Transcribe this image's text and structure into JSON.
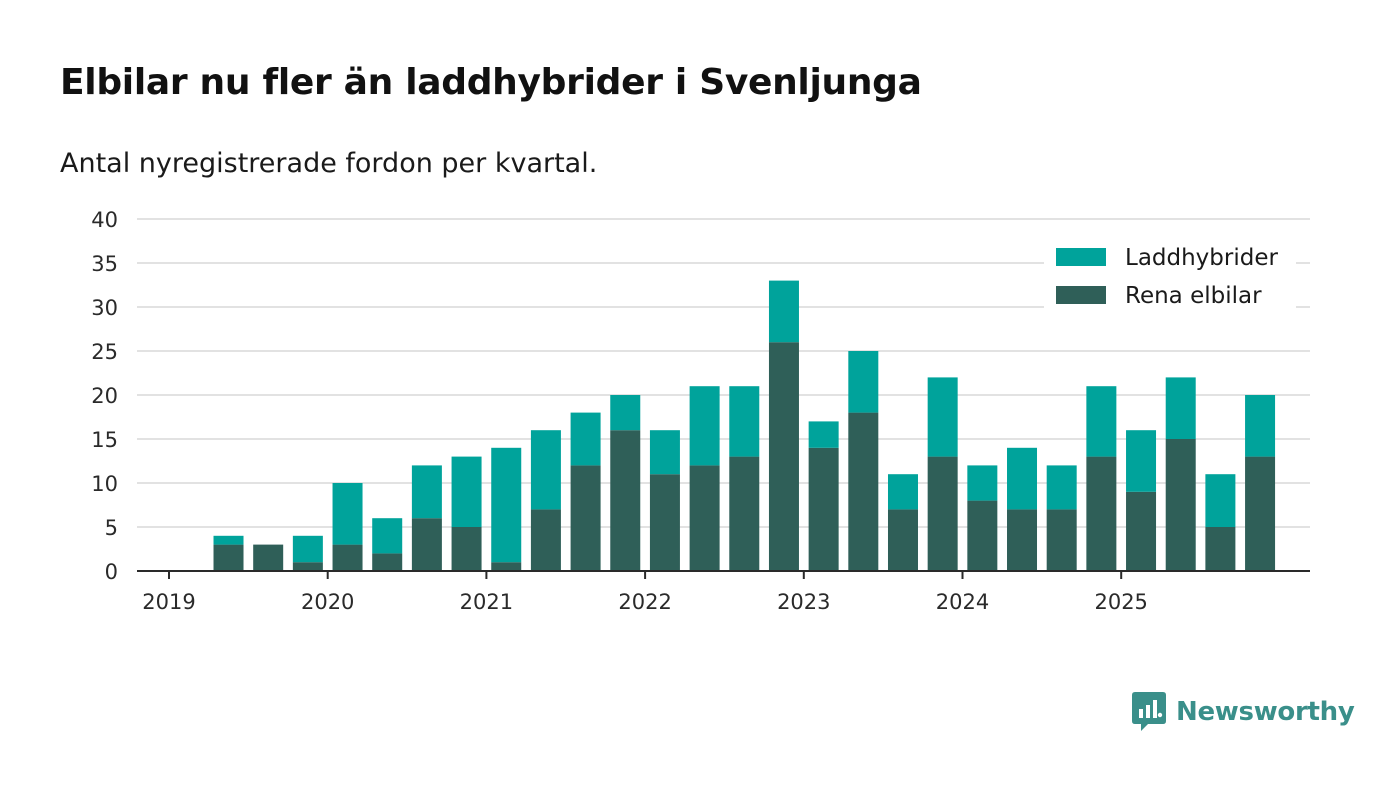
{
  "chart_data": {
    "type": "bar",
    "stacked": true,
    "title": "Elbilar nu fler än laddhybrider i Svenljunga",
    "subtitle": "Antal nyregistrerade fordon per kvartal.",
    "xlabel": "",
    "ylabel": "",
    "ylim": [
      0,
      40
    ],
    "yticks": [
      0,
      5,
      10,
      15,
      20,
      25,
      30,
      35,
      40
    ],
    "xticks": [
      "2019",
      "2020",
      "2021",
      "2022",
      "2023",
      "2024",
      "2025"
    ],
    "categories": [
      "2019 Q2",
      "2019 Q3",
      "2019 Q4",
      "2020 Q1",
      "2020 Q2",
      "2020 Q3",
      "2020 Q4",
      "2021 Q1",
      "2021 Q2",
      "2021 Q3",
      "2021 Q4",
      "2022 Q1",
      "2022 Q2",
      "2022 Q3",
      "2022 Q4",
      "2023 Q1",
      "2023 Q2",
      "2023 Q3",
      "2023 Q4",
      "2024 Q1",
      "2024 Q2",
      "2024 Q3",
      "2024 Q4",
      "2025 Q1",
      "2025 Q2",
      "2025 Q3",
      "2025 Q4"
    ],
    "series": [
      {
        "name": "Rena elbilar",
        "color": "#2f5f58",
        "values": [
          3,
          3,
          1,
          3,
          2,
          6,
          5,
          1,
          7,
          12,
          16,
          11,
          12,
          13,
          26,
          14,
          18,
          7,
          13,
          8,
          7,
          7,
          13,
          9,
          15,
          5,
          13
        ]
      },
      {
        "name": "Laddhybrider",
        "color": "#00a39b",
        "values": [
          1,
          0,
          3,
          7,
          4,
          6,
          8,
          13,
          9,
          6,
          4,
          5,
          9,
          8,
          7,
          3,
          7,
          4,
          9,
          4,
          7,
          5,
          8,
          7,
          7,
          6,
          7
        ]
      }
    ],
    "legend": {
      "position": "top-right",
      "entries": [
        "Laddhybrider",
        "Rena elbilar"
      ]
    },
    "grid": true
  },
  "brand": {
    "name": "Newsworthy",
    "color": "#3a8f8a"
  }
}
